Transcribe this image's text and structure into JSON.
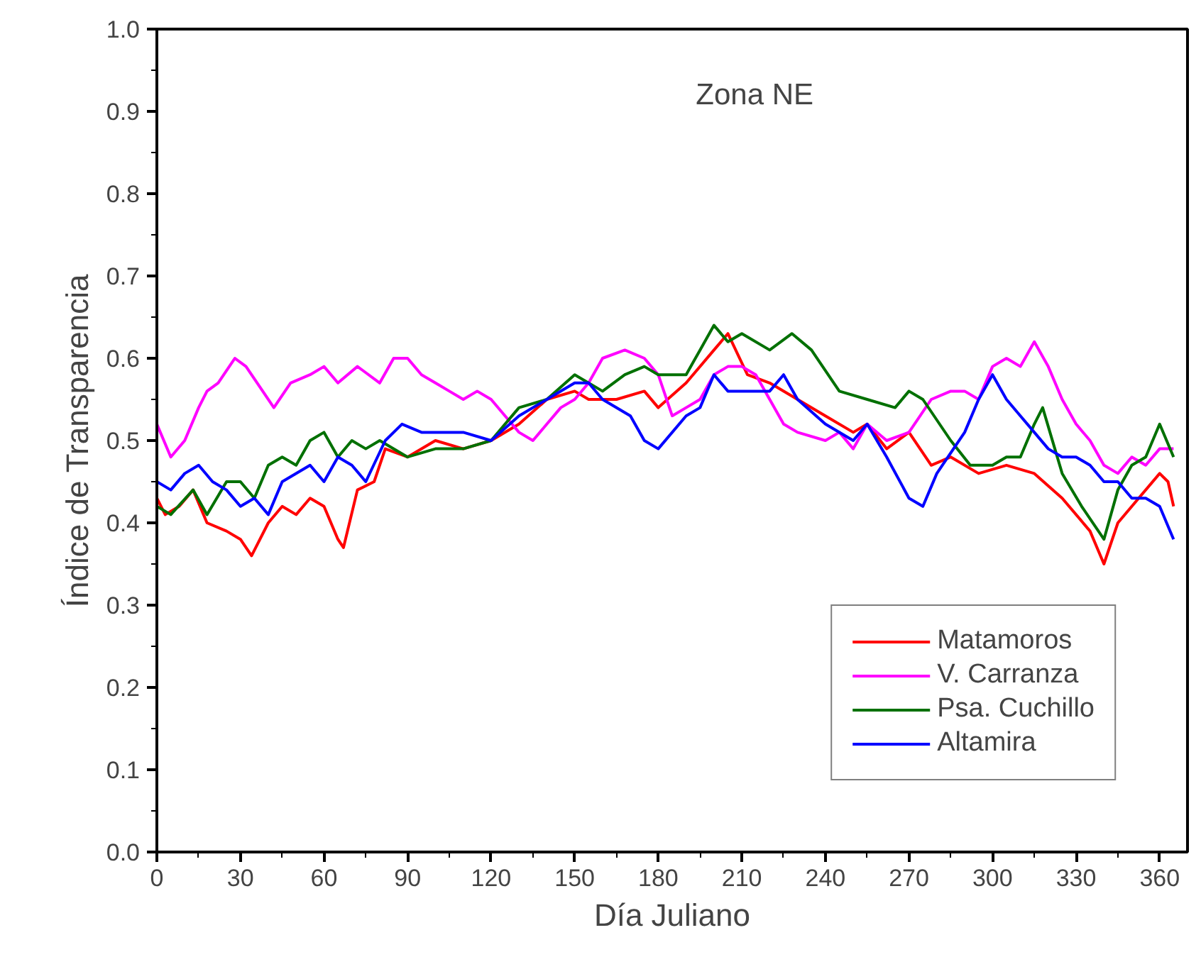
{
  "chart_data": {
    "type": "line",
    "title": "Zona NE",
    "xlabel": "Día Juliano",
    "ylabel": "Índice de Transparencia",
    "xlim": [
      0,
      370
    ],
    "ylim": [
      0,
      1
    ],
    "xticks": [
      0,
      30,
      60,
      90,
      120,
      150,
      180,
      210,
      240,
      270,
      300,
      330,
      360
    ],
    "yticks": [
      {
        "value": 0,
        "label": "0.0"
      },
      {
        "value": 0.1,
        "label": "0.1"
      },
      {
        "value": 0.2,
        "label": "0.2"
      },
      {
        "value": 0.3,
        "label": "0.3"
      },
      {
        "value": 0.4,
        "label": "0.4"
      },
      {
        "value": 0.5,
        "label": "0.5"
      },
      {
        "value": 0.6,
        "label": "0.6"
      },
      {
        "value": 0.7,
        "label": "0.7"
      },
      {
        "value": 0.8,
        "label": "0.8"
      },
      {
        "value": 0.9,
        "label": "0.9"
      },
      {
        "value": 1,
        "label": "1.0"
      }
    ],
    "grid": false,
    "legend": "bottom right",
    "line_style": "solid",
    "series": [
      {
        "name": "Matamoros",
        "color": "#ff0000",
        "x": [
          0,
          3,
          8,
          13,
          18,
          25,
          30,
          34,
          40,
          45,
          50,
          55,
          60,
          65,
          67,
          72,
          78,
          82,
          90,
          100,
          110,
          120,
          130,
          140,
          150,
          155,
          165,
          175,
          180,
          190,
          200,
          205,
          212,
          220,
          230,
          240,
          250,
          255,
          262,
          270,
          278,
          285,
          295,
          305,
          315,
          325,
          335,
          340,
          345,
          350,
          360,
          363,
          365
        ],
        "values": [
          0.43,
          0.41,
          0.42,
          0.44,
          0.4,
          0.39,
          0.38,
          0.36,
          0.4,
          0.42,
          0.41,
          0.43,
          0.42,
          0.38,
          0.37,
          0.44,
          0.45,
          0.49,
          0.48,
          0.5,
          0.49,
          0.5,
          0.52,
          0.55,
          0.56,
          0.55,
          0.55,
          0.56,
          0.54,
          0.57,
          0.61,
          0.63,
          0.58,
          0.57,
          0.55,
          0.53,
          0.51,
          0.52,
          0.49,
          0.51,
          0.47,
          0.48,
          0.46,
          0.47,
          0.46,
          0.43,
          0.39,
          0.35,
          0.4,
          0.42,
          0.46,
          0.45,
          0.42
        ]
      },
      {
        "name": "V. Carranza",
        "color": "#ff00ff",
        "x": [
          0,
          5,
          10,
          15,
          18,
          22,
          28,
          32,
          38,
          42,
          48,
          55,
          60,
          65,
          72,
          80,
          85,
          90,
          95,
          100,
          105,
          110,
          115,
          120,
          125,
          130,
          135,
          140,
          145,
          150,
          155,
          160,
          168,
          175,
          180,
          185,
          190,
          195,
          200,
          205,
          210,
          215,
          220,
          225,
          230,
          240,
          245,
          250,
          255,
          262,
          270,
          278,
          285,
          290,
          295,
          300,
          305,
          310,
          315,
          320,
          325,
          330,
          335,
          340,
          345,
          350,
          355,
          360,
          365
        ],
        "values": [
          0.52,
          0.48,
          0.5,
          0.54,
          0.56,
          0.57,
          0.6,
          0.59,
          0.56,
          0.54,
          0.57,
          0.58,
          0.59,
          0.57,
          0.59,
          0.57,
          0.6,
          0.6,
          0.58,
          0.57,
          0.56,
          0.55,
          0.56,
          0.55,
          0.53,
          0.51,
          0.5,
          0.52,
          0.54,
          0.55,
          0.57,
          0.6,
          0.61,
          0.6,
          0.58,
          0.53,
          0.54,
          0.55,
          0.58,
          0.59,
          0.59,
          0.58,
          0.55,
          0.52,
          0.51,
          0.5,
          0.51,
          0.49,
          0.52,
          0.5,
          0.51,
          0.55,
          0.56,
          0.56,
          0.55,
          0.59,
          0.6,
          0.59,
          0.62,
          0.59,
          0.55,
          0.52,
          0.5,
          0.47,
          0.46,
          0.48,
          0.47,
          0.49,
          0.49
        ]
      },
      {
        "name": "Psa. Cuchillo",
        "color": "#007000",
        "x": [
          0,
          5,
          13,
          18,
          25,
          30,
          35,
          40,
          45,
          50,
          55,
          60,
          65,
          70,
          75,
          80,
          90,
          100,
          110,
          120,
          130,
          140,
          150,
          160,
          168,
          175,
          180,
          190,
          195,
          200,
          205,
          210,
          220,
          228,
          235,
          245,
          255,
          265,
          270,
          275,
          285,
          292,
          300,
          305,
          310,
          315,
          318,
          325,
          332,
          340,
          345,
          350,
          355,
          360,
          365
        ],
        "values": [
          0.42,
          0.41,
          0.44,
          0.41,
          0.45,
          0.45,
          0.43,
          0.47,
          0.48,
          0.47,
          0.5,
          0.51,
          0.48,
          0.5,
          0.49,
          0.5,
          0.48,
          0.49,
          0.49,
          0.5,
          0.54,
          0.55,
          0.58,
          0.56,
          0.58,
          0.59,
          0.58,
          0.58,
          0.61,
          0.64,
          0.62,
          0.63,
          0.61,
          0.63,
          0.61,
          0.56,
          0.55,
          0.54,
          0.56,
          0.55,
          0.5,
          0.47,
          0.47,
          0.48,
          0.48,
          0.52,
          0.54,
          0.46,
          0.42,
          0.38,
          0.44,
          0.47,
          0.48,
          0.52,
          0.48
        ]
      },
      {
        "name": "Altamira",
        "color": "#0000ff",
        "x": [
          0,
          5,
          10,
          15,
          20,
          25,
          30,
          35,
          40,
          45,
          55,
          60,
          65,
          70,
          75,
          82,
          88,
          95,
          100,
          110,
          120,
          130,
          140,
          150,
          155,
          160,
          170,
          175,
          180,
          190,
          195,
          200,
          205,
          210,
          220,
          225,
          230,
          240,
          250,
          255,
          262,
          270,
          275,
          280,
          290,
          295,
          300,
          305,
          310,
          315,
          320,
          325,
          330,
          335,
          340,
          345,
          350,
          355,
          360,
          365
        ],
        "values": [
          0.45,
          0.44,
          0.46,
          0.47,
          0.45,
          0.44,
          0.42,
          0.43,
          0.41,
          0.45,
          0.47,
          0.45,
          0.48,
          0.47,
          0.45,
          0.5,
          0.52,
          0.51,
          0.51,
          0.51,
          0.5,
          0.53,
          0.55,
          0.57,
          0.57,
          0.55,
          0.53,
          0.5,
          0.49,
          0.53,
          0.54,
          0.58,
          0.56,
          0.56,
          0.56,
          0.58,
          0.55,
          0.52,
          0.5,
          0.52,
          0.48,
          0.43,
          0.42,
          0.46,
          0.51,
          0.55,
          0.58,
          0.55,
          0.53,
          0.51,
          0.49,
          0.48,
          0.48,
          0.47,
          0.45,
          0.45,
          0.43,
          0.43,
          0.42,
          0.38
        ]
      }
    ]
  }
}
